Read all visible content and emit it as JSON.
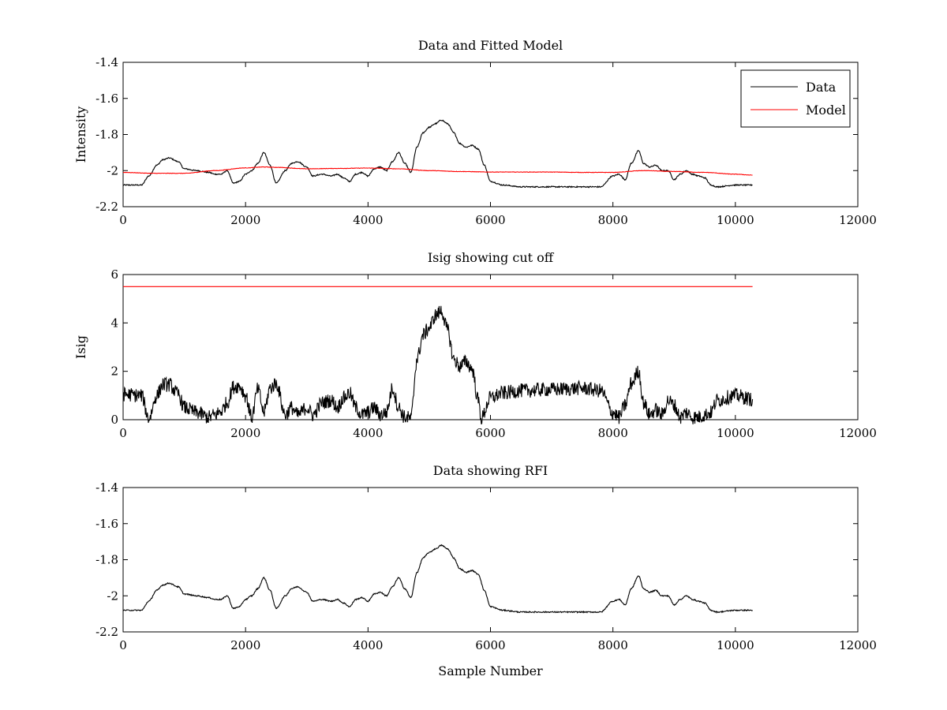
{
  "chart_data": [
    {
      "type": "line",
      "title": "Data and Fitted Model",
      "xlabel": "",
      "ylabel": "Intensity",
      "xlim": [
        0,
        12000
      ],
      "ylim": [
        -2.2,
        -1.4
      ],
      "xticks": [
        0,
        2000,
        4000,
        6000,
        8000,
        10000,
        12000
      ],
      "yticks": [
        -2.2,
        -2,
        -1.8,
        -1.6,
        -1.4
      ],
      "xtick_labels": [
        "0",
        "2000",
        "4000",
        "6000",
        "8000",
        "10000",
        "12000"
      ],
      "ytick_labels": [
        "-2.2",
        "-2",
        "-1.8",
        "-1.6",
        "-1.4"
      ],
      "legend": {
        "placement": "top-right"
      },
      "grid": false,
      "series": [
        {
          "name": "Data",
          "color": "#000000",
          "noise": 0.004,
          "x": [
            0,
            300,
            420,
            550,
            650,
            750,
            900,
            1000,
            1200,
            1400,
            1500,
            1600,
            1700,
            1800,
            1900,
            2000,
            2100,
            2200,
            2300,
            2400,
            2500,
            2650,
            2750,
            2850,
            3000,
            3100,
            3250,
            3400,
            3500,
            3600,
            3700,
            3800,
            3900,
            4000,
            4100,
            4200,
            4300,
            4400,
            4500,
            4600,
            4700,
            4800,
            4900,
            5000,
            5100,
            5200,
            5300,
            5400,
            5500,
            5600,
            5700,
            5800,
            5900,
            6000,
            6200,
            6500,
            7000,
            7500,
            7800,
            8000,
            8100,
            8200,
            8300,
            8420,
            8500,
            8600,
            8700,
            8800,
            8900,
            9000,
            9100,
            9200,
            9300,
            9400,
            9500,
            9600,
            9700,
            10000,
            10280
          ],
          "y": [
            -2.08,
            -2.08,
            -2.03,
            -1.97,
            -1.94,
            -1.93,
            -1.95,
            -1.99,
            -2.0,
            -2.01,
            -2.02,
            -2.02,
            -2.0,
            -2.07,
            -2.06,
            -2.02,
            -2.0,
            -1.96,
            -1.9,
            -1.97,
            -2.07,
            -2.0,
            -1.96,
            -1.95,
            -1.98,
            -2.03,
            -2.02,
            -2.03,
            -2.02,
            -2.04,
            -2.06,
            -2.02,
            -2.01,
            -2.03,
            -1.99,
            -1.98,
            -2.0,
            -1.95,
            -1.9,
            -1.96,
            -2.01,
            -1.87,
            -1.79,
            -1.76,
            -1.74,
            -1.72,
            -1.74,
            -1.79,
            -1.85,
            -1.87,
            -1.86,
            -1.88,
            -1.97,
            -2.06,
            -2.08,
            -2.09,
            -2.09,
            -2.09,
            -2.09,
            -2.03,
            -2.02,
            -2.05,
            -1.96,
            -1.89,
            -1.96,
            -1.98,
            -1.97,
            -2.0,
            -2.0,
            -2.05,
            -2.02,
            -2.0,
            -2.02,
            -2.03,
            -2.04,
            -2.08,
            -2.09,
            -2.08,
            -2.08
          ]
        },
        {
          "name": "Model",
          "color": "#ff0000",
          "noise": 0.0015,
          "x": [
            0,
            500,
            1000,
            1500,
            2000,
            2300,
            2500,
            3000,
            3500,
            4000,
            4500,
            5000,
            5500,
            6000,
            6500,
            7000,
            7500,
            8000,
            8500,
            9000,
            9500,
            10000,
            10280
          ],
          "y": [
            -2.01,
            -2.015,
            -2.015,
            -2.0,
            -1.985,
            -1.98,
            -1.982,
            -1.99,
            -1.988,
            -1.986,
            -1.99,
            -2.0,
            -2.005,
            -2.008,
            -2.008,
            -2.008,
            -2.01,
            -2.01,
            -2.0,
            -2.005,
            -2.01,
            -2.02,
            -2.025
          ]
        }
      ]
    },
    {
      "type": "line",
      "title": "Isig showing cut off",
      "xlabel": "",
      "ylabel": "Isig",
      "xlim": [
        0,
        12000
      ],
      "ylim": [
        0,
        6
      ],
      "xticks": [
        0,
        2000,
        4000,
        6000,
        8000,
        10000,
        12000
      ],
      "yticks": [
        0,
        2,
        4,
        6
      ],
      "xtick_labels": [
        "0",
        "2000",
        "4000",
        "6000",
        "8000",
        "10000",
        "12000"
      ],
      "ytick_labels": [
        "0",
        "2",
        "4",
        "6"
      ],
      "grid": false,
      "series": [
        {
          "name": "",
          "color": "#000000",
          "noise": 0.05,
          "x": [
            0,
            300,
            420,
            550,
            650,
            750,
            900,
            1000,
            1200,
            1400,
            1500,
            1600,
            1700,
            1800,
            1900,
            2000,
            2100,
            2200,
            2300,
            2400,
            2500,
            2650,
            2750,
            2850,
            3000,
            3100,
            3250,
            3400,
            3500,
            3600,
            3700,
            3800,
            3900,
            4000,
            4100,
            4200,
            4300,
            4400,
            4500,
            4600,
            4700,
            4800,
            4900,
            5000,
            5100,
            5200,
            5300,
            5400,
            5500,
            5600,
            5700,
            5800,
            5850,
            6000,
            6200,
            6500,
            7000,
            7500,
            7800,
            8000,
            8100,
            8200,
            8300,
            8420,
            8500,
            8600,
            8700,
            8800,
            8900,
            9000,
            9100,
            9200,
            9300,
            9400,
            9500,
            9600,
            9700,
            10000,
            10280
          ],
          "y": [
            1.05,
            1.0,
            0.05,
            1.0,
            1.45,
            1.45,
            1.05,
            0.5,
            0.3,
            0.1,
            0.2,
            0.35,
            0.7,
            1.35,
            1.4,
            1.0,
            0.1,
            1.25,
            0.3,
            1.3,
            1.5,
            0.2,
            0.5,
            0.2,
            0.5,
            0.2,
            0.7,
            0.8,
            0.5,
            0.9,
            1.1,
            0.5,
            0.2,
            0.3,
            0.5,
            0.2,
            0.3,
            1.3,
            0.5,
            0.1,
            0.05,
            2.5,
            3.5,
            3.8,
            4.3,
            4.5,
            3.7,
            2.5,
            2.2,
            2.4,
            2.1,
            0.8,
            0.05,
            0.9,
            1.1,
            1.2,
            1.25,
            1.3,
            1.2,
            0.3,
            0.1,
            0.6,
            1.5,
            2.0,
            0.7,
            0.2,
            0.4,
            0.2,
            0.8,
            0.6,
            0.1,
            0.3,
            0.1,
            0.1,
            0.2,
            0.3,
            0.8,
            1.0,
            0.85
          ]
        },
        {
          "name": "",
          "color": "#ff0000",
          "noise": 0,
          "x": [
            0,
            10280
          ],
          "y": [
            5.5,
            5.5
          ]
        }
      ]
    },
    {
      "type": "line",
      "title": "Data showing RFI",
      "xlabel": "Sample Number",
      "ylabel": "",
      "xlim": [
        0,
        12000
      ],
      "ylim": [
        -2.2,
        -1.4
      ],
      "xticks": [
        0,
        2000,
        4000,
        6000,
        8000,
        10000,
        12000
      ],
      "yticks": [
        -2.2,
        -2,
        -1.8,
        -1.6,
        -1.4
      ],
      "xtick_labels": [
        "0",
        "2000",
        "4000",
        "6000",
        "8000",
        "10000",
        "12000"
      ],
      "ytick_labels": [
        "-2.2",
        "-2",
        "-1.8",
        "-1.6",
        "-1.4"
      ],
      "grid": false,
      "series": [
        {
          "name": "",
          "color": "#000000",
          "noise": 0.004,
          "x": [
            0,
            300,
            420,
            550,
            650,
            750,
            900,
            1000,
            1200,
            1400,
            1500,
            1600,
            1700,
            1800,
            1900,
            2000,
            2100,
            2200,
            2300,
            2400,
            2500,
            2650,
            2750,
            2850,
            3000,
            3100,
            3250,
            3400,
            3500,
            3600,
            3700,
            3800,
            3900,
            4000,
            4100,
            4200,
            4300,
            4400,
            4500,
            4600,
            4700,
            4800,
            4900,
            5000,
            5100,
            5200,
            5300,
            5400,
            5500,
            5600,
            5700,
            5800,
            5900,
            6000,
            6200,
            6500,
            7000,
            7500,
            7800,
            8000,
            8100,
            8200,
            8300,
            8420,
            8500,
            8600,
            8700,
            8800,
            8900,
            9000,
            9100,
            9200,
            9300,
            9400,
            9500,
            9600,
            9700,
            10000,
            10280
          ],
          "y": [
            -2.08,
            -2.08,
            -2.03,
            -1.97,
            -1.94,
            -1.93,
            -1.95,
            -1.99,
            -2.0,
            -2.01,
            -2.02,
            -2.02,
            -2.0,
            -2.07,
            -2.06,
            -2.02,
            -2.0,
            -1.96,
            -1.9,
            -1.97,
            -2.07,
            -2.0,
            -1.96,
            -1.95,
            -1.98,
            -2.03,
            -2.02,
            -2.03,
            -2.02,
            -2.04,
            -2.06,
            -2.02,
            -2.01,
            -2.03,
            -1.99,
            -1.98,
            -2.0,
            -1.95,
            -1.9,
            -1.96,
            -2.01,
            -1.87,
            -1.79,
            -1.76,
            -1.74,
            -1.72,
            -1.74,
            -1.79,
            -1.85,
            -1.87,
            -1.86,
            -1.88,
            -1.97,
            -2.06,
            -2.08,
            -2.09,
            -2.09,
            -2.09,
            -2.09,
            -2.03,
            -2.02,
            -2.05,
            -1.96,
            -1.89,
            -1.96,
            -1.98,
            -1.97,
            -2.0,
            -2.0,
            -2.05,
            -2.02,
            -2.0,
            -2.02,
            -2.03,
            -2.04,
            -2.08,
            -2.09,
            -2.08,
            -2.08
          ]
        }
      ]
    }
  ]
}
